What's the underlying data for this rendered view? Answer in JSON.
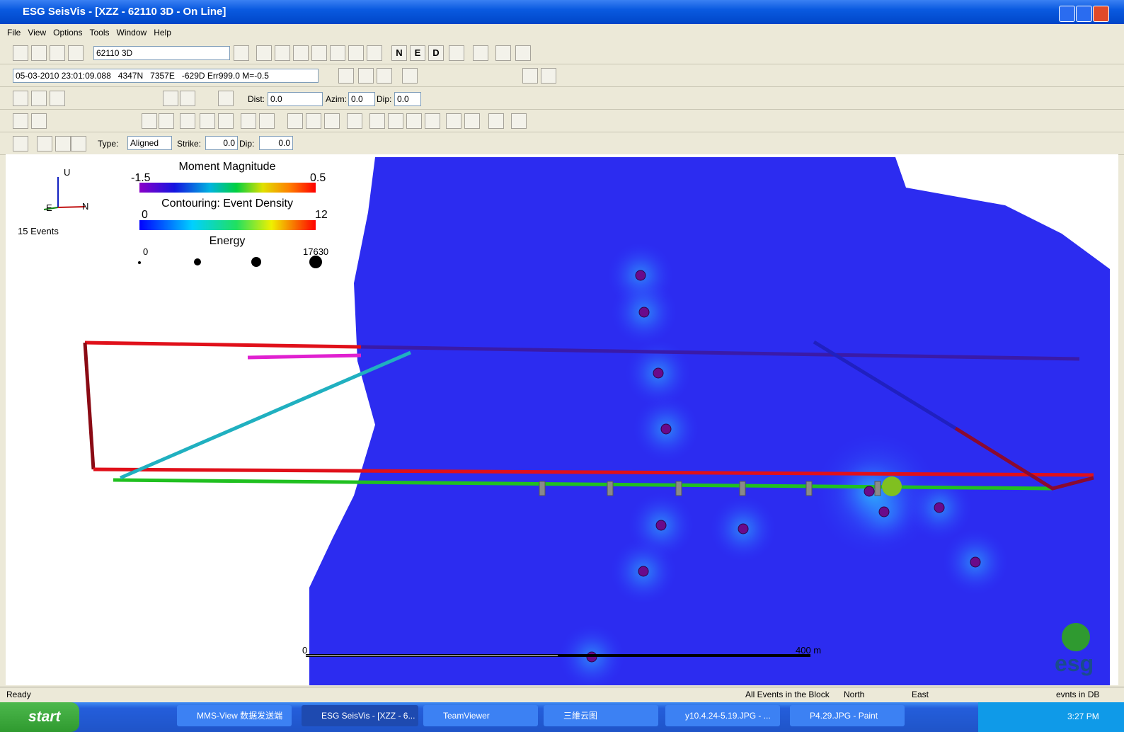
{
  "window": {
    "title": "ESG SeisVis - [XZZ - 62110 3D - On Line]"
  },
  "menu": [
    "File",
    "View",
    "Options",
    "Tools",
    "Window",
    "Help"
  ],
  "toolbar": {
    "project": "62110 3D",
    "view_buttons": [
      "N",
      "E",
      "D"
    ],
    "event_info": "05-03-2010 23:01:09.088   4347N   7357E   -629D Err999.0 M=-0.5",
    "dist_label": "Dist:",
    "dist": "0.0",
    "azim_label": "Azim:",
    "azim": "0.0",
    "dip_label": "Dip:",
    "dip": "0.0",
    "type_label": "Type:",
    "type": "Aligned",
    "strike_label": "Strike:",
    "strike": "0.0",
    "dip2_label": "Dip:",
    "dip2": "0.0"
  },
  "viewport": {
    "axes": [
      "U",
      "E",
      "N"
    ],
    "event_count": "15 Events",
    "legend": {
      "magnitude_title": "Moment Magnitude",
      "magnitude_min": "-1.5",
      "magnitude_max": "0.5",
      "density_title": "Contouring: Event Density",
      "density_min": "0",
      "density_max": "12",
      "energy_title": "Energy",
      "energy_min": "0",
      "energy_max": "17630"
    },
    "scale_start": "0",
    "scale_end": "400 m",
    "logo": "esg"
  },
  "status": [
    "Ready",
    "All Events in the Block",
    "North",
    "East",
    "evnts in DB"
  ],
  "taskbar": {
    "start": "start",
    "items": [
      "MMS-View 数据发送端",
      "ESG SeisVis - [XZZ - 6...",
      "TeamViewer",
      "三維云图",
      "y10.4.24-5.19.JPG - ...",
      "P4.29.JPG - Paint"
    ],
    "clock": "3:27 PM"
  }
}
